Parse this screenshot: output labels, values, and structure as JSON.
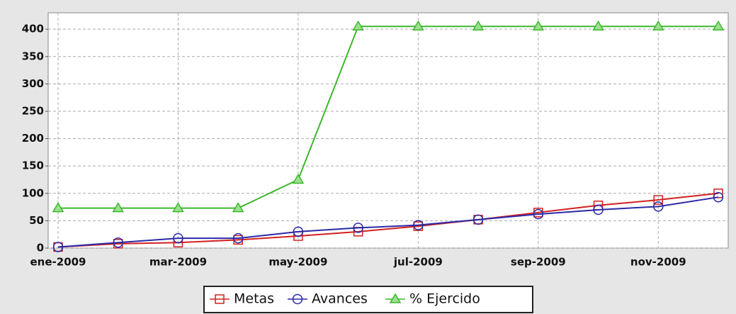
{
  "chart_data": {
    "type": "line",
    "categories": [
      "ene-2009",
      null,
      "mar-2009",
      null,
      "may-2009",
      null,
      "jul-2009",
      null,
      "sep-2009",
      null,
      "nov-2009",
      null
    ],
    "series": [
      {
        "name": "Metas",
        "color": "#d42020",
        "marker": "square",
        "values": [
          2,
          8,
          10,
          15,
          22,
          30,
          40,
          52,
          65,
          78,
          88,
          100
        ]
      },
      {
        "name": "Avances",
        "color": "#2a2aa8",
        "marker": "circle",
        "values": [
          2,
          10,
          18,
          18,
          30,
          37,
          42,
          52,
          62,
          70,
          76,
          93
        ]
      },
      {
        "name": "% Ejercido",
        "color": "#3cb82c",
        "marker": "triangle",
        "values": [
          73,
          73,
          73,
          73,
          125,
          405,
          405,
          405,
          405,
          405,
          405,
          405
        ]
      }
    ],
    "ylim": [
      0,
      430
    ],
    "yticks": [
      0,
      50,
      100,
      150,
      200,
      250,
      300,
      350,
      400
    ],
    "grid": true,
    "legend": "bottom"
  }
}
